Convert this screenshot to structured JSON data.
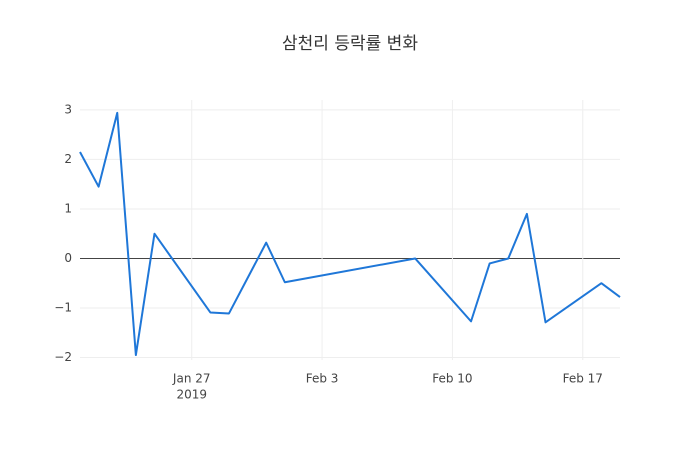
{
  "chart_data": {
    "type": "line",
    "title": "삼천리 등락률 변화",
    "x": [
      "2019-01-21",
      "2019-01-22",
      "2019-01-23",
      "2019-01-24",
      "2019-01-25",
      "2019-01-28",
      "2019-01-29",
      "2019-01-31",
      "2019-02-01",
      "2019-02-08",
      "2019-02-11",
      "2019-02-12",
      "2019-02-13",
      "2019-02-14",
      "2019-02-15",
      "2019-02-18",
      "2019-02-19"
    ],
    "series": [
      {
        "color": "#1f77d8",
        "values": [
          2.15,
          1.45,
          2.94,
          -1.95,
          0.5,
          -1.09,
          -1.11,
          0.32,
          -0.48,
          0,
          -1.27,
          -0.1,
          0,
          0.9,
          -1.29,
          -0.5,
          -0.78
        ]
      }
    ],
    "xlim": [
      "2019-01-21",
      "2019-02-19"
    ],
    "xticks": [
      {
        "value": "2019-01-27",
        "label": "Jan 27",
        "sublabel": "2019"
      },
      {
        "value": "2019-02-03",
        "label": "Feb 3"
      },
      {
        "value": "2019-02-10",
        "label": "Feb 10"
      },
      {
        "value": "2019-02-17",
        "label": "Feb 17"
      }
    ],
    "ylim": [
      -2.05,
      3.2
    ],
    "yticks": [
      {
        "value": -2,
        "label": "−2"
      },
      {
        "value": -1,
        "label": "−1"
      },
      0,
      1,
      2,
      3
    ],
    "grid": true
  }
}
